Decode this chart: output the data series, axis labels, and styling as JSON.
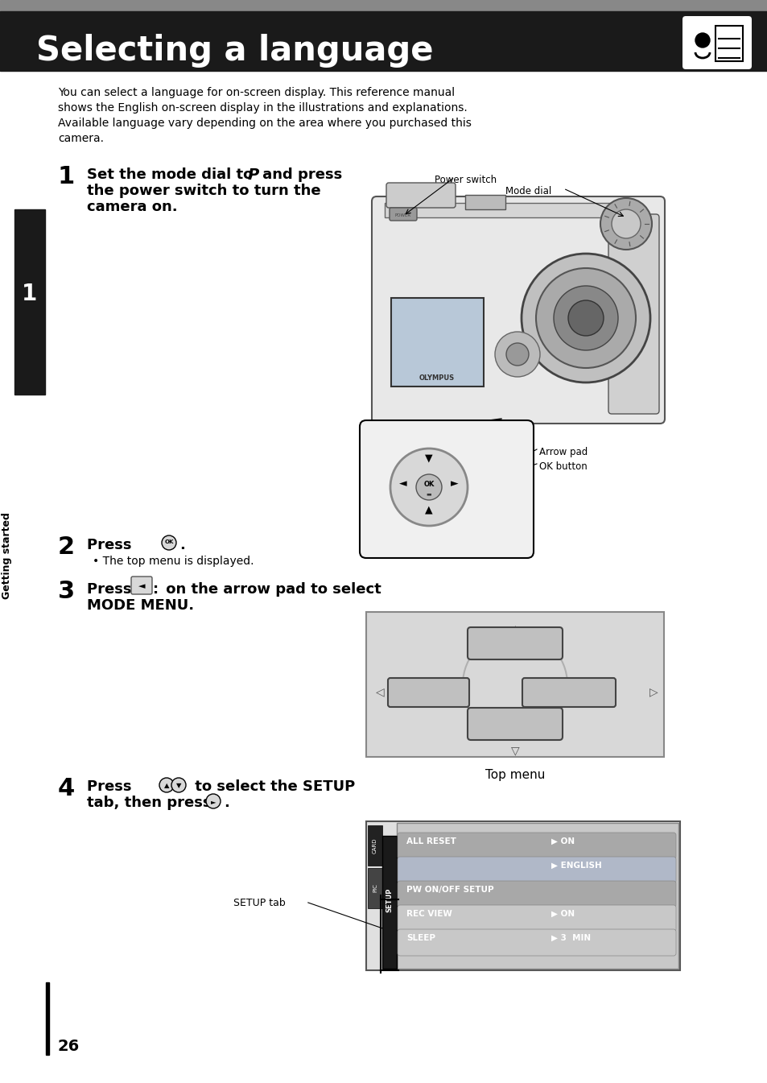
{
  "title": "Selecting a language",
  "title_bg": "#1a1a1a",
  "title_color": "#ffffff",
  "gray_bar_color": "#888888",
  "page_bg": "#ffffff",
  "page_number": "26",
  "sidebar_bg": "#1a1a1a",
  "sidebar_text": "Getting started",
  "sidebar_number": "1",
  "intro_lines": [
    "You can select a language for on-screen display. This reference manual",
    "shows the English on-screen display in the illustrations and explanations.",
    "Available language vary depending on the area where you purchased this",
    "camera."
  ],
  "step1_ann1": "Power switch",
  "step1_ann2": "Mode dial",
  "step1_ann3": "Arrow pad",
  "step1_ann4": "OK button",
  "step2_bullet": "• The top menu is displayed.",
  "top_menu_caption": "Top menu",
  "setup_tab_ann": "SETUP tab",
  "body_fs": 10,
  "step_num_fs": 22,
  "step_text_fs": 13,
  "menu_bg": "#d8d8d8",
  "menu_btn_bg": "#c0c0c0",
  "setup_tab_bg": "#1a1a1a",
  "setup_menu_bg": "#d0d0d0",
  "setup_btn_bg": "#a8a8a8"
}
